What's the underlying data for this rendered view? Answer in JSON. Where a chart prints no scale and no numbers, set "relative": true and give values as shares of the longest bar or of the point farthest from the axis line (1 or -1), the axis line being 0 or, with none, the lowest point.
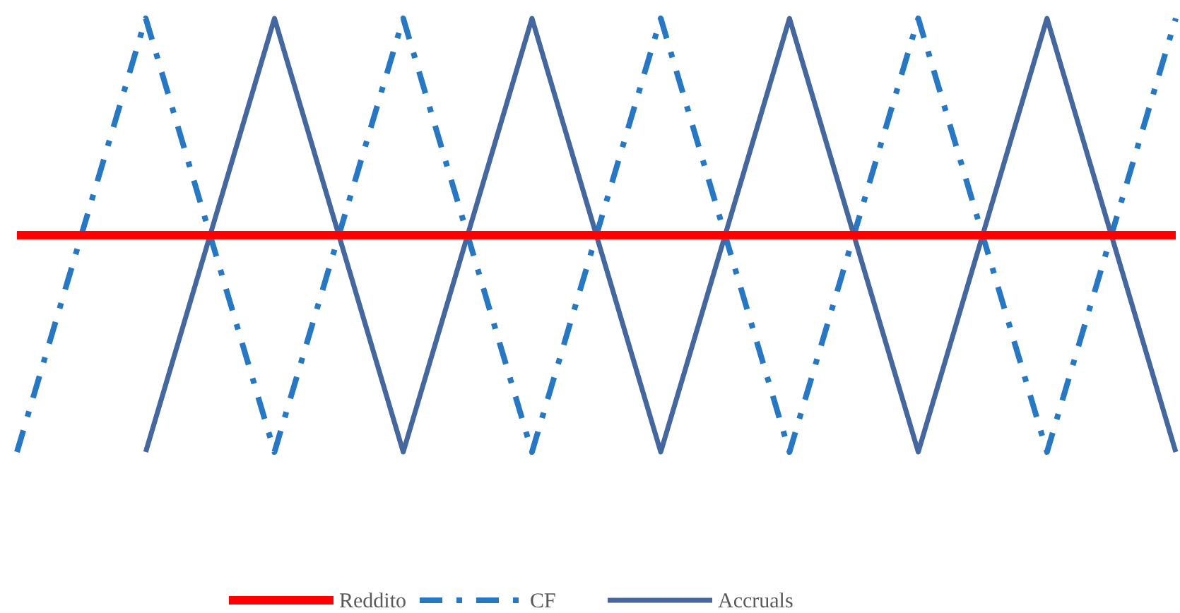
{
  "chart_data": {
    "type": "line",
    "relative": true,
    "categories": [
      null,
      null,
      null,
      null,
      null,
      null,
      null,
      null,
      null,
      null
    ],
    "series": [
      {
        "name": "Reddito",
        "color": "#ff0000",
        "values": [
          0.5,
          0.5,
          0.5,
          0.5,
          0.5,
          0.5,
          0.5,
          0.5,
          0.5,
          0.5
        ],
        "line_style": "solid"
      },
      {
        "name": "CF",
        "color": "#2677c4",
        "values": [
          0,
          1,
          0,
          1,
          0,
          1,
          0,
          1,
          0,
          1
        ],
        "line_style": "dashdot"
      },
      {
        "name": "Accruals",
        "color": "#44679f",
        "values": [
          null,
          0,
          1,
          0,
          1,
          0,
          1,
          0,
          1,
          0
        ],
        "line_style": "solid"
      }
    ],
    "legend": "bottom",
    "marker": "none"
  }
}
